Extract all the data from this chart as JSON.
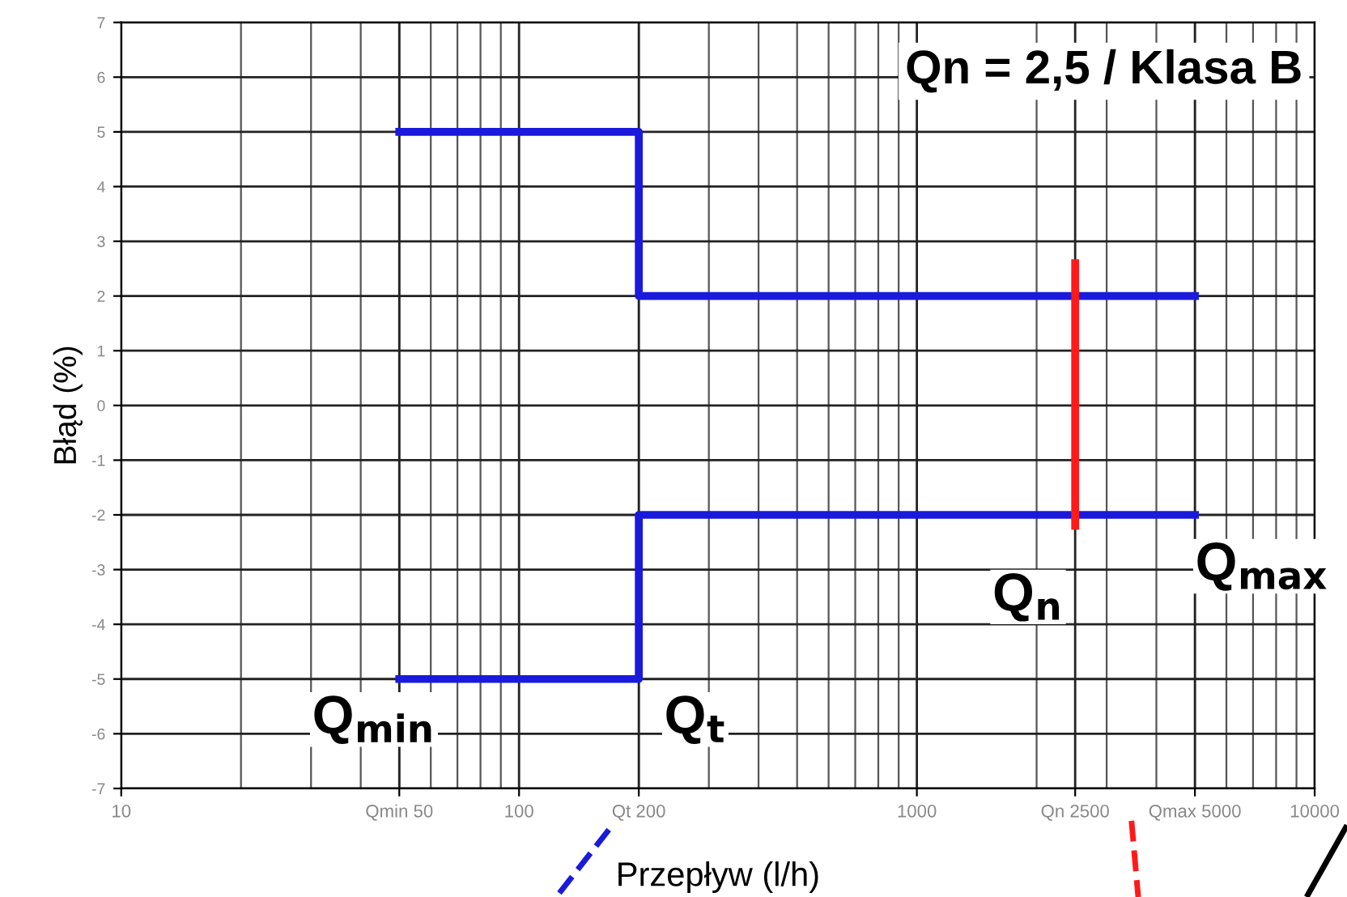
{
  "chart_data": {
    "type": "line",
    "title": "Qn = 2,5 / Klasa B",
    "xlabel": "Przepływ (l/h)",
    "ylabel": "Błąd (%)",
    "log": "x",
    "xlim": [
      10,
      10000
    ],
    "ylim": [
      -7,
      7
    ],
    "xticks": [
      10,
      {
        "value": 50,
        "label": "Qmin 50"
      },
      100,
      {
        "value": 200,
        "label": "Qt 200"
      },
      1000,
      {
        "value": 2500,
        "label": "Qn 2500"
      },
      {
        "value": 5000,
        "label": "Qmax 5000"
      },
      10000
    ],
    "yticks": [
      -7,
      -6,
      -5,
      -4,
      -3,
      -2,
      -1,
      0,
      1,
      2,
      3,
      4,
      5,
      6,
      7
    ],
    "grid": true,
    "marker": "none",
    "line_style": "solid",
    "series": [
      {
        "color": "#1a1adc",
        "x": [
          50,
          200,
          200,
          5000
        ],
        "values": [
          5,
          5,
          2,
          2
        ]
      },
      {
        "color": "#1a1adc",
        "x": [
          50,
          200,
          200,
          5000
        ],
        "values": [
          -5,
          -5,
          -2,
          -2
        ]
      },
      {
        "color": "#ff1a1a",
        "x": [
          2500,
          2500
        ],
        "values": [
          -2.2,
          2.6
        ]
      }
    ],
    "annotations": [
      "Q$_{min}$",
      "Q$_{t}$",
      "Q$_{n}$",
      "Q$_{max}$"
    ]
  }
}
